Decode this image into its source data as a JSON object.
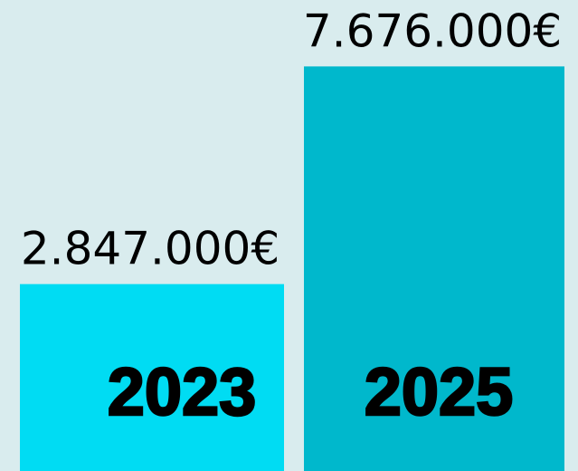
{
  "chart_data": {
    "type": "bar",
    "categories": [
      "2023",
      "2025"
    ],
    "values": [
      2847000,
      7676000
    ],
    "value_labels": [
      "2.847.000€",
      "7.676.000€"
    ],
    "colors": [
      "#00dcf3",
      "#00b8cc"
    ],
    "ylim": [
      -1300000,
      9150000
    ]
  }
}
